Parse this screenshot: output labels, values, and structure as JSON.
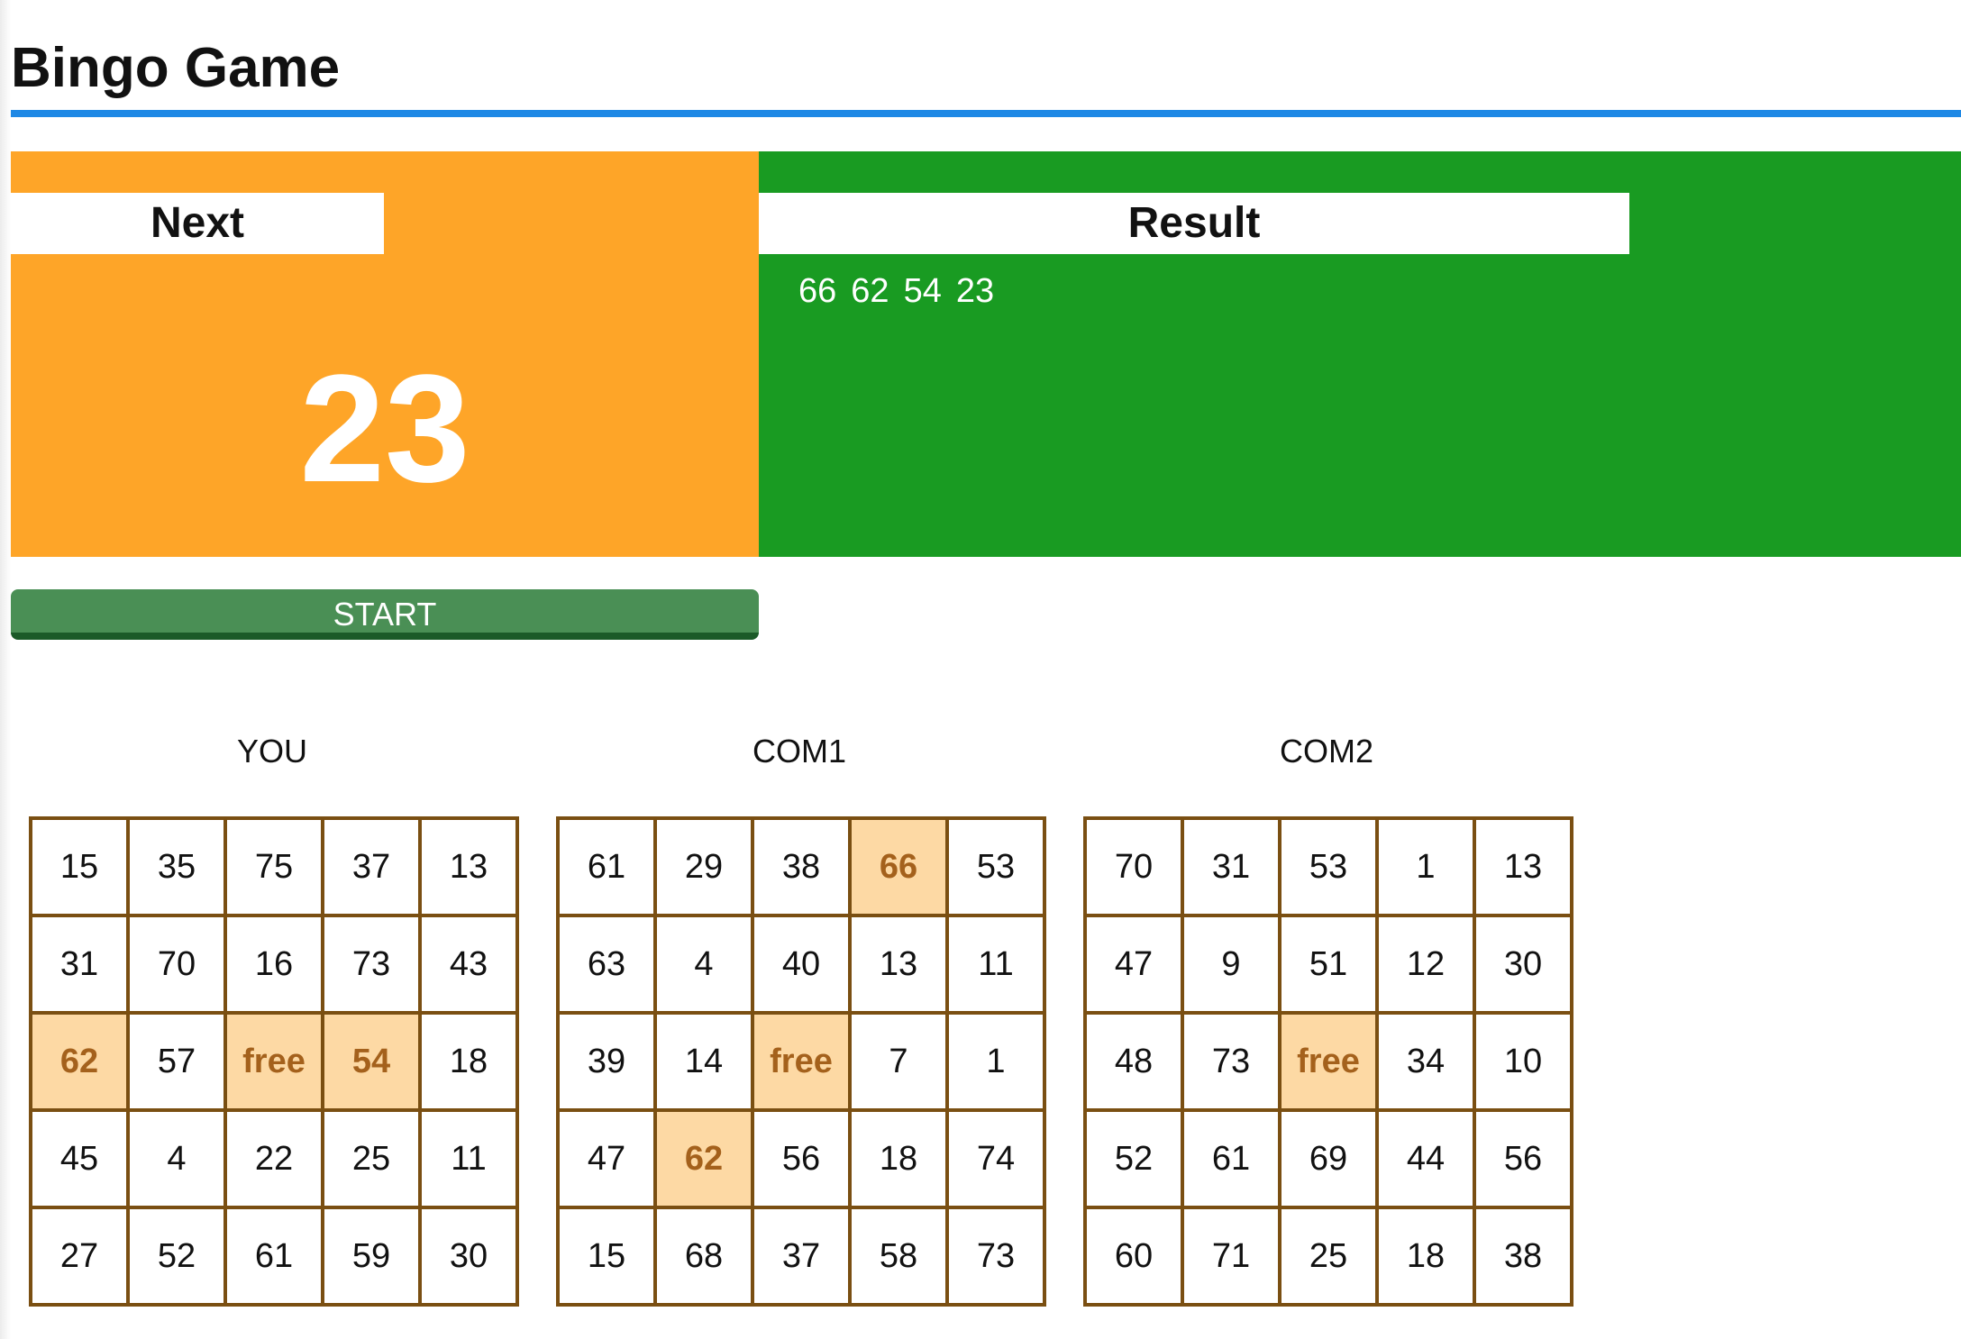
{
  "app": {
    "title": "Bingo Game"
  },
  "next": {
    "label": "Next",
    "number": "23"
  },
  "result": {
    "label": "Result",
    "numbers": [
      "66",
      "62",
      "54",
      "23"
    ]
  },
  "controls": {
    "start_label": "START"
  },
  "colors": {
    "title_rule": "#1e88e5",
    "next_panel": "#fea528",
    "result_panel": "#199b22",
    "start_button": "#4a8f55",
    "grid_border": "#7a4f12",
    "hit_cell": "#fdd9a4",
    "hit_text": "#a4611c"
  },
  "cards": [
    {
      "name": "YOU",
      "cells": [
        [
          "15",
          "35",
          "75",
          "37",
          "13"
        ],
        [
          "31",
          "70",
          "16",
          "73",
          "43"
        ],
        [
          "62",
          "57",
          "free",
          "54",
          "18"
        ],
        [
          "45",
          "4",
          "22",
          "25",
          "11"
        ],
        [
          "27",
          "52",
          "61",
          "59",
          "30"
        ]
      ],
      "marked": [
        [
          2,
          0
        ],
        [
          2,
          2
        ],
        [
          2,
          3
        ]
      ]
    },
    {
      "name": "COM1",
      "cells": [
        [
          "61",
          "29",
          "38",
          "66",
          "53"
        ],
        [
          "63",
          "4",
          "40",
          "13",
          "11"
        ],
        [
          "39",
          "14",
          "free",
          "7",
          "1"
        ],
        [
          "47",
          "62",
          "56",
          "18",
          "74"
        ],
        [
          "15",
          "68",
          "37",
          "58",
          "73"
        ]
      ],
      "marked": [
        [
          0,
          3
        ],
        [
          2,
          2
        ],
        [
          3,
          1
        ]
      ]
    },
    {
      "name": "COM2",
      "cells": [
        [
          "70",
          "31",
          "53",
          "1",
          "13"
        ],
        [
          "47",
          "9",
          "51",
          "12",
          "30"
        ],
        [
          "48",
          "73",
          "free",
          "34",
          "10"
        ],
        [
          "52",
          "61",
          "69",
          "44",
          "56"
        ],
        [
          "60",
          "71",
          "25",
          "18",
          "38"
        ]
      ],
      "marked": [
        [
          2,
          2
        ]
      ]
    }
  ]
}
